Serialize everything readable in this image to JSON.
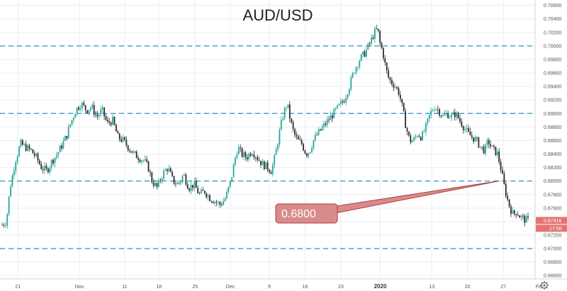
{
  "chart_data": {
    "type": "candlestick",
    "title": "AUD/USD",
    "y_ticks": [
      0.706,
      0.704,
      0.702,
      0.7,
      0.698,
      0.696,
      0.694,
      0.692,
      0.69,
      0.688,
      0.686,
      0.684,
      0.682,
      0.68,
      0.678,
      0.676,
      0.674,
      0.672,
      0.67,
      0.668,
      0.666
    ],
    "y_tick_labels": [
      "0.70600",
      "0.70400",
      "0.70200",
      "0.70000",
      "0.69800",
      "0.69600",
      "0.69400",
      "0.69200",
      "0.69000",
      "0.68800",
      "0.68600",
      "0.68400",
      "0.68200",
      "0.68000",
      "0.67800",
      "0.67600",
      "0.67400",
      "0.67200",
      "0.67000",
      "0.66800",
      "0.66600"
    ],
    "ylim": [
      0.6655,
      0.7068
    ],
    "x_ticks": [
      {
        "label": "21",
        "t": 0.03
      },
      {
        "label": "Nov",
        "t": 0.147
      },
      {
        "label": "11",
        "t": 0.233
      },
      {
        "label": "18",
        "t": 0.298
      },
      {
        "label": "25",
        "t": 0.367
      },
      {
        "label": "Dec",
        "t": 0.434
      },
      {
        "label": "9",
        "t": 0.508
      },
      {
        "label": "16",
        "t": 0.576
      },
      {
        "label": "23",
        "t": 0.644
      },
      {
        "label": "2020",
        "t": 0.719
      },
      {
        "label": "13",
        "t": 0.817
      },
      {
        "label": "20",
        "t": 0.885
      },
      {
        "label": "27",
        "t": 0.953
      },
      {
        "label": "Fe",
        "t": 1.02
      }
    ],
    "horizontal_levels": [
      0.7,
      0.69,
      0.68,
      0.67
    ],
    "annotation": {
      "text": "0.6800",
      "target_price": 0.68,
      "target_t": 0.945
    },
    "last_price": {
      "label": "0.67416",
      "value": 0.67416,
      "countdown": "17:50"
    },
    "price_path": [
      [
        0.0,
        0.6735
      ],
      [
        0.008,
        0.674
      ],
      [
        0.015,
        0.679
      ],
      [
        0.025,
        0.683
      ],
      [
        0.035,
        0.6855
      ],
      [
        0.045,
        0.685
      ],
      [
        0.055,
        0.6845
      ],
      [
        0.065,
        0.6835
      ],
      [
        0.075,
        0.682
      ],
      [
        0.085,
        0.6815
      ],
      [
        0.095,
        0.683
      ],
      [
        0.105,
        0.684
      ],
      [
        0.115,
        0.6855
      ],
      [
        0.123,
        0.6868
      ],
      [
        0.13,
        0.6885
      ],
      [
        0.14,
        0.6905
      ],
      [
        0.15,
        0.6915
      ],
      [
        0.16,
        0.6905
      ],
      [
        0.17,
        0.691
      ],
      [
        0.18,
        0.6895
      ],
      [
        0.19,
        0.6905
      ],
      [
        0.2,
        0.6885
      ],
      [
        0.21,
        0.689
      ],
      [
        0.22,
        0.6865
      ],
      [
        0.23,
        0.686
      ],
      [
        0.24,
        0.685
      ],
      [
        0.25,
        0.684
      ],
      [
        0.26,
        0.6835
      ],
      [
        0.27,
        0.683
      ],
      [
        0.278,
        0.682
      ],
      [
        0.285,
        0.68
      ],
      [
        0.295,
        0.679
      ],
      [
        0.305,
        0.681
      ],
      [
        0.315,
        0.682
      ],
      [
        0.325,
        0.68
      ],
      [
        0.335,
        0.6795
      ],
      [
        0.345,
        0.681
      ],
      [
        0.355,
        0.679
      ],
      [
        0.365,
        0.6795
      ],
      [
        0.375,
        0.678
      ],
      [
        0.385,
        0.6785
      ],
      [
        0.395,
        0.6775
      ],
      [
        0.405,
        0.677
      ],
      [
        0.415,
        0.6765
      ],
      [
        0.425,
        0.6775
      ],
      [
        0.435,
        0.68
      ],
      [
        0.442,
        0.683
      ],
      [
        0.448,
        0.685
      ],
      [
        0.455,
        0.684
      ],
      [
        0.465,
        0.6835
      ],
      [
        0.475,
        0.6845
      ],
      [
        0.485,
        0.6835
      ],
      [
        0.495,
        0.6825
      ],
      [
        0.505,
        0.682
      ],
      [
        0.512,
        0.6815
      ],
      [
        0.52,
        0.684
      ],
      [
        0.528,
        0.6875
      ],
      [
        0.535,
        0.69
      ],
      [
        0.542,
        0.6915
      ],
      [
        0.548,
        0.689
      ],
      [
        0.555,
        0.687
      ],
      [
        0.562,
        0.686
      ],
      [
        0.57,
        0.6855
      ],
      [
        0.578,
        0.684
      ],
      [
        0.585,
        0.6845
      ],
      [
        0.592,
        0.686
      ],
      [
        0.6,
        0.687
      ],
      [
        0.61,
        0.688
      ],
      [
        0.62,
        0.689
      ],
      [
        0.63,
        0.69
      ],
      [
        0.64,
        0.691
      ],
      [
        0.65,
        0.692
      ],
      [
        0.66,
        0.694
      ],
      [
        0.67,
        0.6965
      ],
      [
        0.68,
        0.698
      ],
      [
        0.69,
        0.699
      ],
      [
        0.7,
        0.7005
      ],
      [
        0.708,
        0.702
      ],
      [
        0.714,
        0.7025
      ],
      [
        0.718,
        0.7005
      ],
      [
        0.724,
        0.699
      ],
      [
        0.73,
        0.6965
      ],
      [
        0.736,
        0.695
      ],
      [
        0.742,
        0.6945
      ],
      [
        0.748,
        0.694
      ],
      [
        0.755,
        0.693
      ],
      [
        0.762,
        0.6905
      ],
      [
        0.768,
        0.688
      ],
      [
        0.775,
        0.686
      ],
      [
        0.782,
        0.686
      ],
      [
        0.79,
        0.687
      ],
      [
        0.798,
        0.6865
      ],
      [
        0.806,
        0.688
      ],
      [
        0.814,
        0.69
      ],
      [
        0.822,
        0.691
      ],
      [
        0.83,
        0.6905
      ],
      [
        0.838,
        0.6895
      ],
      [
        0.846,
        0.69
      ],
      [
        0.854,
        0.6895
      ],
      [
        0.862,
        0.69
      ],
      [
        0.87,
        0.689
      ],
      [
        0.878,
        0.688
      ],
      [
        0.886,
        0.687
      ],
      [
        0.894,
        0.6865
      ],
      [
        0.902,
        0.686
      ],
      [
        0.91,
        0.685
      ],
      [
        0.918,
        0.6845
      ],
      [
        0.924,
        0.686
      ],
      [
        0.93,
        0.685
      ],
      [
        0.936,
        0.6845
      ],
      [
        0.942,
        0.684
      ],
      [
        0.948,
        0.682
      ],
      [
        0.954,
        0.6795
      ],
      [
        0.96,
        0.6775
      ],
      [
        0.966,
        0.676
      ],
      [
        0.972,
        0.675
      ],
      [
        0.978,
        0.6755
      ],
      [
        0.984,
        0.6748
      ],
      [
        0.99,
        0.6745
      ],
      [
        0.995,
        0.6742
      ]
    ]
  },
  "colors": {
    "up": "#26a69a",
    "down": "#2b2b2b",
    "level": "#4aa3c7",
    "callout_fill": "#d98b8b",
    "callout_stroke": "#b03a3a",
    "price_tag": "#e57373",
    "countdown_tag": "#e57373",
    "grid": "#e9eef2",
    "axis": "#d0d4d8"
  },
  "icons": {
    "settings": "gear-icon"
  }
}
